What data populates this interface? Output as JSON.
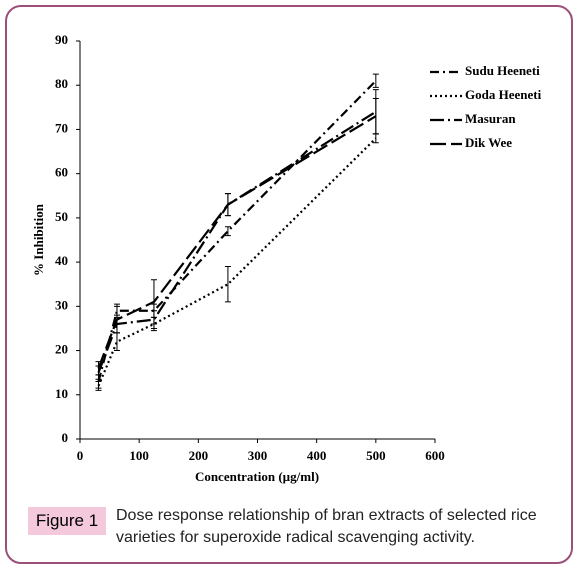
{
  "chart_data": {
    "type": "line",
    "xlabel": "Concentration  (µg/ml)",
    "ylabel": "% Inhibition",
    "xlim": [
      0,
      600
    ],
    "xticks": [
      0,
      100,
      200,
      300,
      400,
      500,
      600
    ],
    "ylim": [
      0,
      90
    ],
    "yticks": [
      0,
      10,
      20,
      30,
      40,
      50,
      60,
      70,
      80,
      90
    ],
    "x": [
      31.25,
      62.5,
      125,
      250,
      500
    ],
    "series": [
      {
        "name": "Sudu Heeneti",
        "color": "#000000",
        "line_style": "dashdot",
        "values": [
          13,
          29,
          29,
          47,
          81
        ],
        "errors": [
          1.5,
          1.5,
          1.5,
          1,
          1.5
        ]
      },
      {
        "name": "Goda Heeneti",
        "color": "#000000",
        "line_style": "dotted",
        "values": [
          12,
          22,
          26,
          35,
          68
        ],
        "errors": [
          1,
          2,
          1.5,
          4,
          1
        ]
      },
      {
        "name": "Masuran",
        "color": "#000000",
        "line_style": "longdashdot",
        "values": [
          15,
          26,
          27,
          53,
          74
        ],
        "errors": [
          1.5,
          2,
          2,
          2.5,
          5
        ]
      },
      {
        "name": "Dik Wee",
        "color": "#000000",
        "line_style": "longdash",
        "values": [
          16,
          27,
          31,
          53,
          73
        ],
        "errors": [
          1.5,
          3,
          5,
          2.5,
          4
        ]
      }
    ]
  },
  "caption": {
    "label": "Figure 1",
    "text": "Dose response relationship of bran extracts of selected rice varieties for superoxide radical scavenging activity."
  }
}
